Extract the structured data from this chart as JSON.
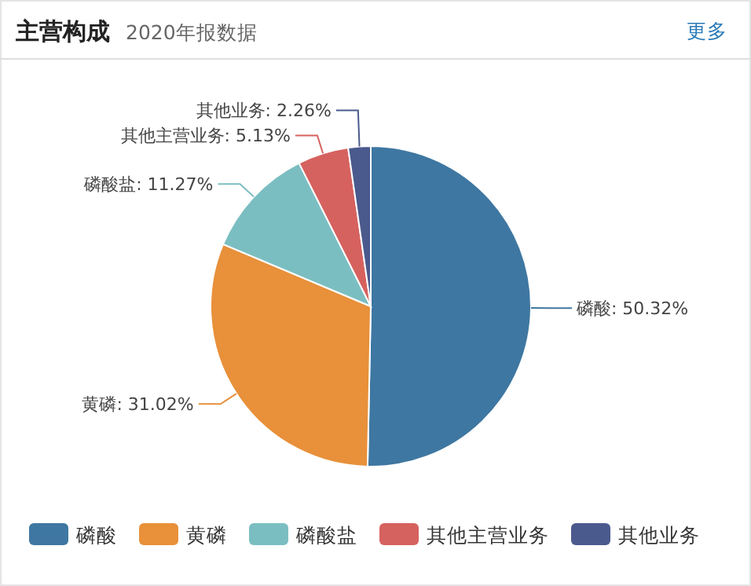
{
  "chart_data": {
    "type": "pie",
    "title": "主营构成",
    "subtitle": "2020年报数据",
    "annotations": [
      "更多"
    ],
    "categories": [
      "磷酸",
      "黄磷",
      "磷酸盐",
      "其他主营业务",
      "其他业务"
    ],
    "values": [
      50.32,
      31.02,
      11.27,
      5.13,
      2.26
    ],
    "value_labels": [
      "磷酸: 50.32%",
      "黄磷: 31.02%",
      "磷酸盐: 11.27%",
      "其他主营业务: 5.13%",
      "其他业务: 2.26%"
    ],
    "colors": [
      "#3e77a1",
      "#e8903a",
      "#7bbec1",
      "#d6625f",
      "#4b5a8d"
    ],
    "legend": "bottom"
  }
}
